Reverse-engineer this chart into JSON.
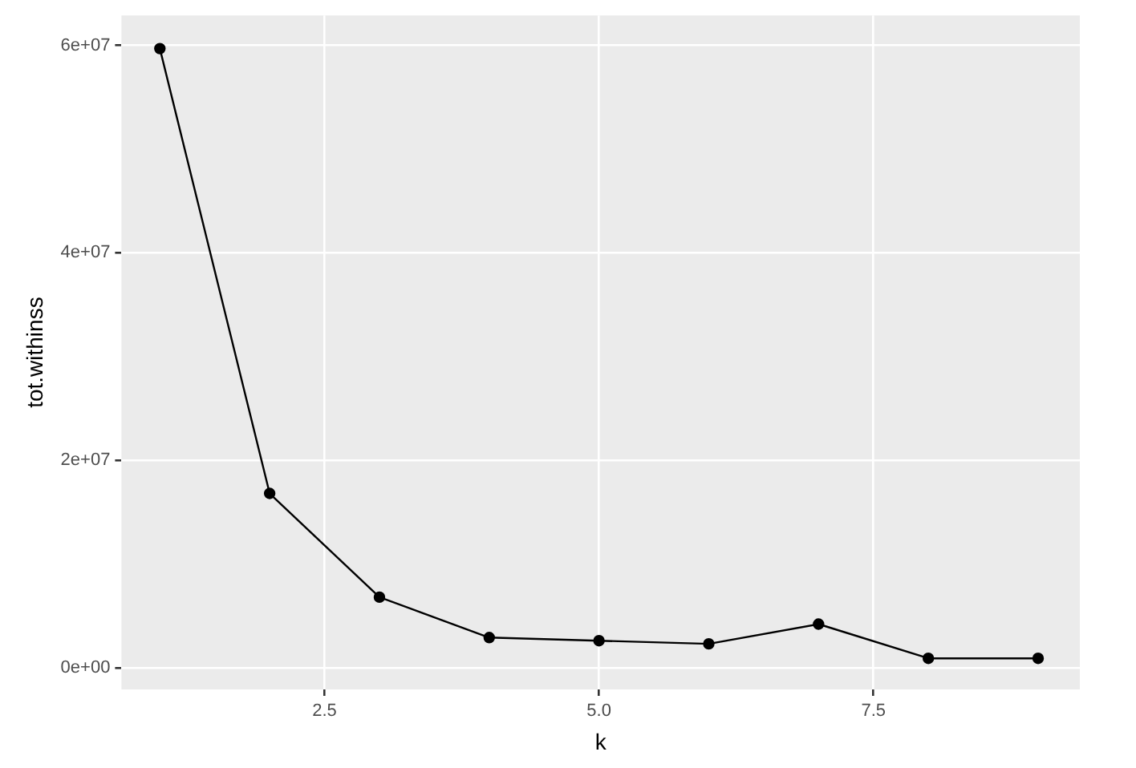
{
  "chart_data": {
    "type": "line",
    "xlabel": "k",
    "ylabel": "tot.withinss",
    "x": [
      1,
      2,
      3,
      4,
      5,
      6,
      7,
      8,
      9
    ],
    "series": [
      {
        "color": "#000000",
        "values": [
          59700000,
          16800000,
          6800000,
          2900000,
          2600000,
          2300000,
          4200000,
          900000,
          900000
        ]
      }
    ],
    "xlim": [
      0.65,
      9.38
    ],
    "ylim": [
      -2100000,
      62900000
    ],
    "xticks": [
      2.5,
      {
        "value": 5,
        "label": "5.0"
      },
      7.5
    ],
    "yticks": [
      {
        "value": 0,
        "label": "0e+00"
      },
      {
        "value": 20000000,
        "label": "2e+07"
      },
      {
        "value": 40000000,
        "label": "4e+07"
      },
      {
        "value": 60000000,
        "label": "6e+07"
      }
    ],
    "grid": true,
    "marker": "circle",
    "line_style": "solid",
    "legend": false
  }
}
